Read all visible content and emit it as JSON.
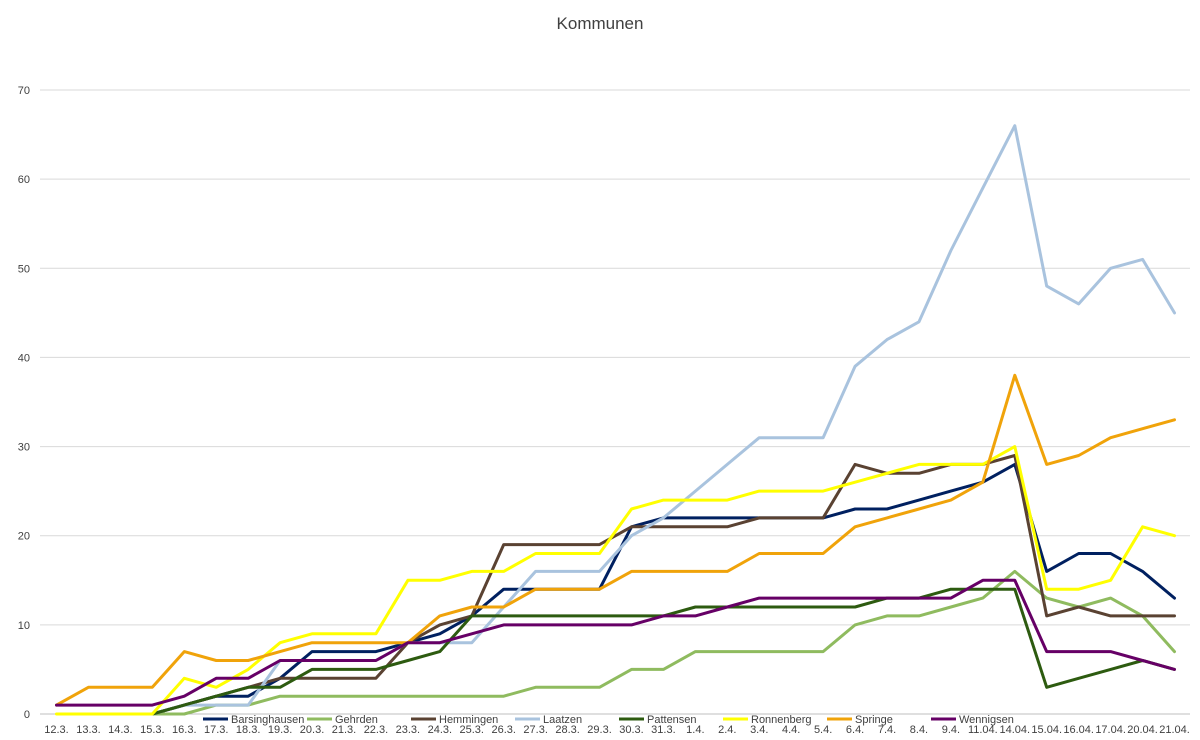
{
  "chart_data": {
    "type": "line",
    "title": "Kommunen",
    "xlabel": "",
    "ylabel": "",
    "ylim": [
      0,
      70
    ],
    "yticks": [
      0,
      10,
      20,
      30,
      40,
      50,
      60,
      70
    ],
    "grid": true,
    "legend_position": "bottom",
    "categories": [
      "12.3.",
      "13.3.",
      "14.3.",
      "15.3.",
      "16.3.",
      "17.3.",
      "18.3.",
      "19.3.",
      "20.3.",
      "21.3.",
      "22.3.",
      "23.3.",
      "24.3.",
      "25.3.",
      "26.3.",
      "27.3.",
      "28.3.",
      "29.3.",
      "30.3.",
      "31.3.",
      "1.4.",
      "2.4.",
      "3.4.",
      "4.4.",
      "5.4.",
      "6.4.",
      "7.4.",
      "8.4.",
      "9.4.",
      "11.04.",
      "14.04.",
      "15.04.",
      "16.04.",
      "17.04.",
      "20.04.",
      "21.04."
    ],
    "series": [
      {
        "name": "Barsinghausen",
        "color": "#002060",
        "values": [
          null,
          null,
          null,
          0,
          1,
          2,
          2,
          4,
          7,
          7,
          7,
          8,
          9,
          11,
          14,
          14,
          14,
          14,
          21,
          22,
          22,
          22,
          22,
          22,
          22,
          23,
          23,
          24,
          25,
          26,
          28,
          16,
          18,
          18,
          16,
          13
        ]
      },
      {
        "name": "Gehrden",
        "color": "#8fbb5f",
        "values": [
          null,
          null,
          null,
          0,
          0,
          1,
          1,
          2,
          2,
          2,
          2,
          2,
          2,
          2,
          2,
          3,
          3,
          3,
          5,
          5,
          7,
          7,
          7,
          7,
          7,
          10,
          11,
          11,
          12,
          13,
          16,
          13,
          12,
          13,
          11,
          7
        ]
      },
      {
        "name": "Hemmingen",
        "color": "#5a4232",
        "values": [
          null,
          null,
          null,
          0,
          1,
          2,
          3,
          4,
          4,
          4,
          4,
          8,
          10,
          11,
          19,
          19,
          19,
          19,
          21,
          21,
          21,
          21,
          22,
          22,
          22,
          28,
          27,
          27,
          28,
          28,
          29,
          11,
          12,
          11,
          11,
          11
        ]
      },
      {
        "name": "Laatzen",
        "color": "#a9c3de",
        "values": [
          null,
          null,
          null,
          0,
          1,
          1,
          1,
          6,
          6,
          6,
          6,
          8,
          8,
          8,
          12,
          16,
          16,
          16,
          20,
          22,
          25,
          28,
          31,
          31,
          31,
          39,
          42,
          44,
          52,
          59,
          66,
          48,
          46,
          50,
          51,
          45
        ]
      },
      {
        "name": "Pattensen",
        "color": "#2d5b10",
        "values": [
          null,
          null,
          null,
          0,
          1,
          2,
          3,
          3,
          5,
          5,
          5,
          6,
          7,
          11,
          11,
          11,
          11,
          11,
          11,
          11,
          12,
          12,
          12,
          12,
          12,
          12,
          13,
          13,
          14,
          14,
          14,
          3,
          4,
          5,
          6,
          5
        ]
      },
      {
        "name": "Ronnenberg",
        "color": "#ffff00",
        "values": [
          0,
          0,
          0,
          0,
          4,
          3,
          5,
          8,
          9,
          9,
          9,
          15,
          15,
          16,
          16,
          18,
          18,
          18,
          23,
          24,
          24,
          24,
          25,
          25,
          25,
          26,
          27,
          28,
          28,
          28,
          30,
          14,
          14,
          15,
          21,
          20
        ]
      },
      {
        "name": "Springe",
        "color": "#f0a30a",
        "values": [
          1,
          3,
          3,
          3,
          7,
          6,
          6,
          7,
          8,
          8,
          8,
          8,
          11,
          12,
          12,
          14,
          14,
          14,
          16,
          16,
          16,
          16,
          18,
          18,
          18,
          21,
          22,
          23,
          24,
          26,
          38,
          28,
          29,
          31,
          32,
          33
        ]
      },
      {
        "name": "Wennigsen",
        "color": "#660066",
        "values": [
          1,
          1,
          1,
          1,
          2,
          4,
          4,
          6,
          6,
          6,
          6,
          8,
          8,
          9,
          10,
          10,
          10,
          10,
          10,
          11,
          11,
          12,
          13,
          13,
          13,
          13,
          13,
          13,
          13,
          15,
          15,
          7,
          7,
          7,
          6,
          5
        ]
      }
    ]
  }
}
